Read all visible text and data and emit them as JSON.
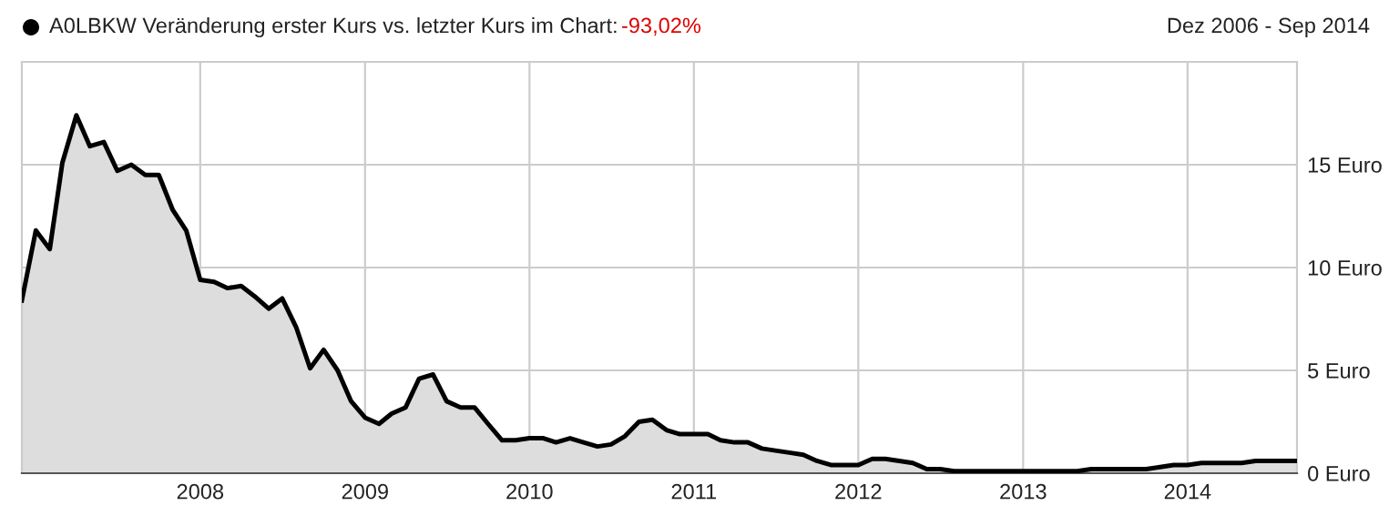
{
  "chart_data": {
    "type": "area",
    "title": "A0LBKW Veränderung erster Kurs vs. letzter Kurs im Chart:",
    "subtitle": "Dez 2006 - Sep 2014",
    "annotations": [
      "-93,02%"
    ],
    "x": [
      "2006-12",
      "2007-01",
      "2007-02",
      "2007-03",
      "2007-04",
      "2007-05",
      "2007-06",
      "2007-07",
      "2007-08",
      "2007-09",
      "2007-10",
      "2007-11",
      "2007-12",
      "2008-01",
      "2008-02",
      "2008-03",
      "2008-04",
      "2008-05",
      "2008-06",
      "2008-07",
      "2008-08",
      "2008-09",
      "2008-10",
      "2008-11",
      "2008-12",
      "2009-01",
      "2009-02",
      "2009-03",
      "2009-04",
      "2009-05",
      "2009-06",
      "2009-07",
      "2009-08",
      "2009-09",
      "2009-10",
      "2009-11",
      "2009-12",
      "2010-01",
      "2010-02",
      "2010-03",
      "2010-04",
      "2010-05",
      "2010-06",
      "2010-07",
      "2010-08",
      "2010-09",
      "2010-10",
      "2010-11",
      "2010-12",
      "2011-01",
      "2011-02",
      "2011-03",
      "2011-04",
      "2011-05",
      "2011-06",
      "2011-07",
      "2011-08",
      "2011-09",
      "2011-10",
      "2011-11",
      "2011-12",
      "2012-01",
      "2012-02",
      "2012-03",
      "2012-04",
      "2012-05",
      "2012-06",
      "2012-07",
      "2012-08",
      "2012-09",
      "2012-10",
      "2012-11",
      "2012-12",
      "2013-01",
      "2013-02",
      "2013-03",
      "2013-04",
      "2013-05",
      "2013-06",
      "2013-07",
      "2013-08",
      "2013-09",
      "2013-10",
      "2013-11",
      "2013-12",
      "2014-01",
      "2014-02",
      "2014-03",
      "2014-04",
      "2014-05",
      "2014-06",
      "2014-07",
      "2014-08",
      "2014-09"
    ],
    "series": [
      {
        "color": "#000000",
        "values": [
          8.4,
          11.8,
          10.9,
          15.1,
          17.4,
          15.9,
          16.1,
          14.7,
          15.0,
          14.5,
          14.5,
          12.8,
          11.8,
          9.4,
          9.3,
          9.0,
          9.1,
          8.6,
          8.0,
          8.5,
          7.1,
          5.1,
          6.0,
          5.0,
          3.5,
          2.7,
          2.4,
          2.9,
          3.2,
          4.6,
          4.8,
          3.5,
          3.2,
          3.2,
          2.4,
          1.6,
          1.6,
          1.7,
          1.7,
          1.5,
          1.7,
          1.5,
          1.3,
          1.4,
          1.8,
          2.5,
          2.6,
          2.1,
          1.9,
          1.9,
          1.9,
          1.6,
          1.5,
          1.5,
          1.2,
          1.1,
          1.0,
          0.9,
          0.6,
          0.4,
          0.4,
          0.4,
          0.7,
          0.7,
          0.6,
          0.5,
          0.2,
          0.2,
          0.1,
          0.1,
          0.1,
          0.1,
          0.1,
          0.1,
          0.1,
          0.1,
          0.1,
          0.1,
          0.2,
          0.2,
          0.2,
          0.2,
          0.2,
          0.3,
          0.4,
          0.4,
          0.5,
          0.5,
          0.5,
          0.5,
          0.6,
          0.6,
          0.6,
          0.6
        ]
      }
    ],
    "xlim": [
      "2006-12",
      "2014-09"
    ],
    "xticks": [
      {
        "value": "2008-01",
        "label": "2008"
      },
      {
        "value": "2009-01",
        "label": "2009"
      },
      {
        "value": "2010-01",
        "label": "2010"
      },
      {
        "value": "2011-01",
        "label": "2011"
      },
      {
        "value": "2012-01",
        "label": "2012"
      },
      {
        "value": "2013-01",
        "label": "2013"
      },
      {
        "value": "2014-01",
        "label": "2014"
      }
    ],
    "ylim": [
      0,
      20
    ],
    "yticks": [
      {
        "value": 0,
        "label": "0 Euro"
      },
      {
        "value": 5,
        "label": "5 Euro"
      },
      {
        "value": 10,
        "label": "10 Euro"
      },
      {
        "value": 15,
        "label": "15 Euro"
      }
    ],
    "grid": true
  }
}
